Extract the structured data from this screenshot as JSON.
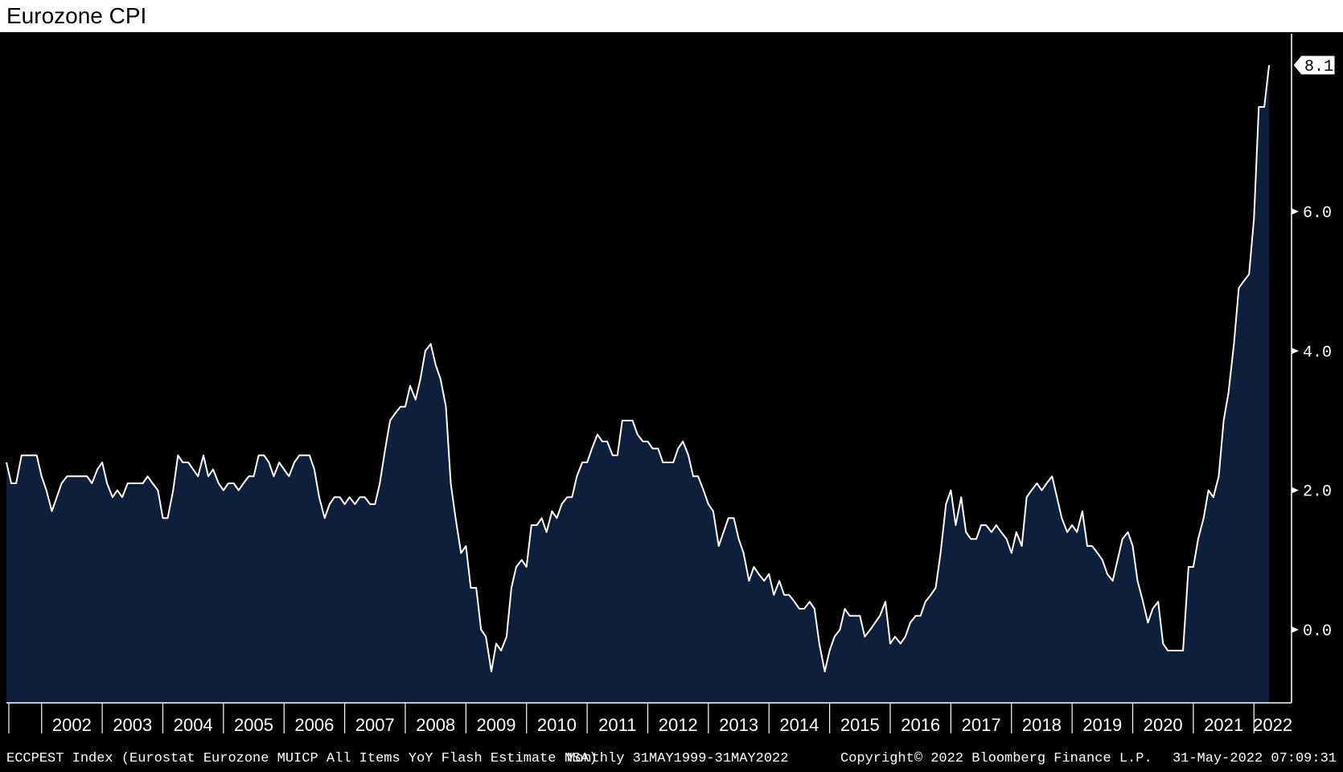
{
  "title": "Eurozone CPI",
  "footer": {
    "ticker": "ECCPEST Index (Eurostat Eurozone MUICP All Items YoY Flash Estimate NSA)",
    "frequency": "Monthly 31MAY1999-31MAY2022",
    "copyright": "Copyright© 2022 Bloomberg Finance L.P.",
    "timestamp": "31-May-2022 07:09:31"
  },
  "colors": {
    "background": "#000000",
    "area_fill": "#0d1f3a",
    "line": "#ffffff",
    "frame": "#ffffff"
  },
  "chart_data": {
    "type": "area",
    "title": "Eurozone CPI",
    "xlabel": "",
    "ylabel": "",
    "ylim": [
      -1.05,
      8.55
    ],
    "xlim": [
      2001.42,
      2022.62
    ],
    "y_ticks": [
      0.0,
      2.0,
      4.0,
      6.0
    ],
    "y_tick_labels": [
      "0.0",
      "2.0",
      "4.0",
      "6.0"
    ],
    "x_year_labels": [
      "2002",
      "2003",
      "2004",
      "2005",
      "2006",
      "2007",
      "2008",
      "2009",
      "2010",
      "2011",
      "2012",
      "2013",
      "2014",
      "2015",
      "2016",
      "2017",
      "2018",
      "2019",
      "2020",
      "2021",
      "2022"
    ],
    "last_value": 8.1,
    "last_value_label": "8.1",
    "grid": false,
    "legend": "none",
    "series": [
      {
        "points": [
          [
            2001.42,
            2.4
          ],
          [
            2001.5,
            2.1
          ],
          [
            2001.58,
            2.1
          ],
          [
            2001.67,
            2.5
          ],
          [
            2001.75,
            2.5
          ],
          [
            2001.83,
            2.5
          ],
          [
            2001.92,
            2.5
          ],
          [
            2002.0,
            2.2
          ],
          [
            2002.08,
            2.0
          ],
          [
            2002.17,
            1.7
          ],
          [
            2002.25,
            1.9
          ],
          [
            2002.33,
            2.1
          ],
          [
            2002.42,
            2.2
          ],
          [
            2002.5,
            2.2
          ],
          [
            2002.58,
            2.2
          ],
          [
            2002.67,
            2.2
          ],
          [
            2002.75,
            2.2
          ],
          [
            2002.83,
            2.1
          ],
          [
            2002.92,
            2.3
          ],
          [
            2003.0,
            2.4
          ],
          [
            2003.08,
            2.1
          ],
          [
            2003.17,
            1.9
          ],
          [
            2003.25,
            2.0
          ],
          [
            2003.33,
            1.9
          ],
          [
            2003.42,
            2.1
          ],
          [
            2003.5,
            2.1
          ],
          [
            2003.58,
            2.1
          ],
          [
            2003.67,
            2.1
          ],
          [
            2003.75,
            2.2
          ],
          [
            2003.83,
            2.1
          ],
          [
            2003.92,
            2.0
          ],
          [
            2004.0,
            1.6
          ],
          [
            2004.08,
            1.6
          ],
          [
            2004.17,
            2.0
          ],
          [
            2004.25,
            2.5
          ],
          [
            2004.33,
            2.4
          ],
          [
            2004.42,
            2.4
          ],
          [
            2004.5,
            2.3
          ],
          [
            2004.58,
            2.2
          ],
          [
            2004.67,
            2.5
          ],
          [
            2004.75,
            2.2
          ],
          [
            2004.83,
            2.3
          ],
          [
            2004.92,
            2.1
          ],
          [
            2005.0,
            2.0
          ],
          [
            2005.08,
            2.1
          ],
          [
            2005.17,
            2.1
          ],
          [
            2005.25,
            2.0
          ],
          [
            2005.33,
            2.1
          ],
          [
            2005.42,
            2.2
          ],
          [
            2005.5,
            2.2
          ],
          [
            2005.58,
            2.5
          ],
          [
            2005.67,
            2.5
          ],
          [
            2005.75,
            2.4
          ],
          [
            2005.83,
            2.2
          ],
          [
            2005.92,
            2.4
          ],
          [
            2006.0,
            2.3
          ],
          [
            2006.08,
            2.2
          ],
          [
            2006.17,
            2.4
          ],
          [
            2006.25,
            2.5
          ],
          [
            2006.33,
            2.5
          ],
          [
            2006.42,
            2.5
          ],
          [
            2006.5,
            2.3
          ],
          [
            2006.58,
            1.9
          ],
          [
            2006.67,
            1.6
          ],
          [
            2006.75,
            1.8
          ],
          [
            2006.83,
            1.9
          ],
          [
            2006.92,
            1.9
          ],
          [
            2007.0,
            1.8
          ],
          [
            2007.08,
            1.9
          ],
          [
            2007.17,
            1.8
          ],
          [
            2007.25,
            1.9
          ],
          [
            2007.33,
            1.9
          ],
          [
            2007.42,
            1.8
          ],
          [
            2007.5,
            1.8
          ],
          [
            2007.58,
            2.1
          ],
          [
            2007.67,
            2.6
          ],
          [
            2007.75,
            3.0
          ],
          [
            2007.83,
            3.1
          ],
          [
            2007.92,
            3.2
          ],
          [
            2008.0,
            3.2
          ],
          [
            2008.08,
            3.5
          ],
          [
            2008.17,
            3.3
          ],
          [
            2008.25,
            3.6
          ],
          [
            2008.33,
            4.0
          ],
          [
            2008.42,
            4.1
          ],
          [
            2008.5,
            3.8
          ],
          [
            2008.58,
            3.6
          ],
          [
            2008.67,
            3.2
          ],
          [
            2008.75,
            2.1
          ],
          [
            2008.83,
            1.6
          ],
          [
            2008.92,
            1.1
          ],
          [
            2009.0,
            1.2
          ],
          [
            2009.08,
            0.6
          ],
          [
            2009.17,
            0.6
          ],
          [
            2009.25,
            0.0
          ],
          [
            2009.33,
            -0.1
          ],
          [
            2009.42,
            -0.6
          ],
          [
            2009.5,
            -0.2
          ],
          [
            2009.58,
            -0.3
          ],
          [
            2009.67,
            -0.1
          ],
          [
            2009.75,
            0.6
          ],
          [
            2009.83,
            0.9
          ],
          [
            2009.92,
            1.0
          ],
          [
            2010.0,
            0.9
          ],
          [
            2010.08,
            1.5
          ],
          [
            2010.17,
            1.5
          ],
          [
            2010.25,
            1.6
          ],
          [
            2010.33,
            1.4
          ],
          [
            2010.42,
            1.7
          ],
          [
            2010.5,
            1.6
          ],
          [
            2010.58,
            1.8
          ],
          [
            2010.67,
            1.9
          ],
          [
            2010.75,
            1.9
          ],
          [
            2010.83,
            2.2
          ],
          [
            2010.92,
            2.4
          ],
          [
            2011.0,
            2.4
          ],
          [
            2011.08,
            2.6
          ],
          [
            2011.17,
            2.8
          ],
          [
            2011.25,
            2.7
          ],
          [
            2011.33,
            2.7
          ],
          [
            2011.42,
            2.5
          ],
          [
            2011.5,
            2.5
          ],
          [
            2011.58,
            3.0
          ],
          [
            2011.67,
            3.0
          ],
          [
            2011.75,
            3.0
          ],
          [
            2011.83,
            2.8
          ],
          [
            2011.92,
            2.7
          ],
          [
            2012.0,
            2.7
          ],
          [
            2012.08,
            2.6
          ],
          [
            2012.17,
            2.6
          ],
          [
            2012.25,
            2.4
          ],
          [
            2012.33,
            2.4
          ],
          [
            2012.42,
            2.4
          ],
          [
            2012.5,
            2.6
          ],
          [
            2012.58,
            2.7
          ],
          [
            2012.67,
            2.5
          ],
          [
            2012.75,
            2.2
          ],
          [
            2012.83,
            2.2
          ],
          [
            2012.92,
            2.0
          ],
          [
            2013.0,
            1.8
          ],
          [
            2013.08,
            1.7
          ],
          [
            2013.17,
            1.2
          ],
          [
            2013.25,
            1.4
          ],
          [
            2013.33,
            1.6
          ],
          [
            2013.42,
            1.6
          ],
          [
            2013.5,
            1.3
          ],
          [
            2013.58,
            1.1
          ],
          [
            2013.67,
            0.7
          ],
          [
            2013.75,
            0.9
          ],
          [
            2013.83,
            0.8
          ],
          [
            2013.92,
            0.7
          ],
          [
            2014.0,
            0.8
          ],
          [
            2014.08,
            0.5
          ],
          [
            2014.17,
            0.7
          ],
          [
            2014.25,
            0.5
          ],
          [
            2014.33,
            0.5
          ],
          [
            2014.42,
            0.4
          ],
          [
            2014.5,
            0.3
          ],
          [
            2014.58,
            0.3
          ],
          [
            2014.67,
            0.4
          ],
          [
            2014.75,
            0.3
          ],
          [
            2014.83,
            -0.2
          ],
          [
            2014.92,
            -0.6
          ],
          [
            2015.0,
            -0.3
          ],
          [
            2015.08,
            -0.1
          ],
          [
            2015.17,
            0.0
          ],
          [
            2015.25,
            0.3
          ],
          [
            2015.33,
            0.2
          ],
          [
            2015.42,
            0.2
          ],
          [
            2015.5,
            0.2
          ],
          [
            2015.58,
            -0.1
          ],
          [
            2015.67,
            0.0
          ],
          [
            2015.75,
            0.1
          ],
          [
            2015.83,
            0.2
          ],
          [
            2015.92,
            0.4
          ],
          [
            2016.0,
            -0.2
          ],
          [
            2016.08,
            -0.1
          ],
          [
            2016.17,
            -0.2
          ],
          [
            2016.25,
            -0.1
          ],
          [
            2016.33,
            0.1
          ],
          [
            2016.42,
            0.2
          ],
          [
            2016.5,
            0.2
          ],
          [
            2016.58,
            0.4
          ],
          [
            2016.67,
            0.5
          ],
          [
            2016.75,
            0.6
          ],
          [
            2016.83,
            1.1
          ],
          [
            2016.92,
            1.8
          ],
          [
            2017.0,
            2.0
          ],
          [
            2017.08,
            1.5
          ],
          [
            2017.17,
            1.9
          ],
          [
            2017.25,
            1.4
          ],
          [
            2017.33,
            1.3
          ],
          [
            2017.42,
            1.3
          ],
          [
            2017.5,
            1.5
          ],
          [
            2017.58,
            1.5
          ],
          [
            2017.67,
            1.4
          ],
          [
            2017.75,
            1.5
          ],
          [
            2017.83,
            1.4
          ],
          [
            2017.92,
            1.3
          ],
          [
            2018.0,
            1.1
          ],
          [
            2018.08,
            1.4
          ],
          [
            2018.17,
            1.2
          ],
          [
            2018.25,
            1.9
          ],
          [
            2018.33,
            2.0
          ],
          [
            2018.42,
            2.1
          ],
          [
            2018.5,
            2.0
          ],
          [
            2018.58,
            2.1
          ],
          [
            2018.67,
            2.2
          ],
          [
            2018.75,
            1.9
          ],
          [
            2018.83,
            1.6
          ],
          [
            2018.92,
            1.4
          ],
          [
            2019.0,
            1.5
          ],
          [
            2019.08,
            1.4
          ],
          [
            2019.17,
            1.7
          ],
          [
            2019.25,
            1.2
          ],
          [
            2019.33,
            1.2
          ],
          [
            2019.42,
            1.1
          ],
          [
            2019.5,
            1.0
          ],
          [
            2019.58,
            0.8
          ],
          [
            2019.67,
            0.7
          ],
          [
            2019.75,
            1.0
          ],
          [
            2019.83,
            1.3
          ],
          [
            2019.92,
            1.4
          ],
          [
            2020.0,
            1.2
          ],
          [
            2020.08,
            0.7
          ],
          [
            2020.17,
            0.4
          ],
          [
            2020.25,
            0.1
          ],
          [
            2020.33,
            0.3
          ],
          [
            2020.42,
            0.4
          ],
          [
            2020.5,
            -0.2
          ],
          [
            2020.58,
            -0.3
          ],
          [
            2020.67,
            -0.3
          ],
          [
            2020.75,
            -0.3
          ],
          [
            2020.83,
            -0.3
          ],
          [
            2020.92,
            0.9
          ],
          [
            2021.0,
            0.9
          ],
          [
            2021.08,
            1.3
          ],
          [
            2021.17,
            1.6
          ],
          [
            2021.25,
            2.0
          ],
          [
            2021.33,
            1.9
          ],
          [
            2021.42,
            2.2
          ],
          [
            2021.5,
            3.0
          ],
          [
            2021.58,
            3.4
          ],
          [
            2021.67,
            4.1
          ],
          [
            2021.75,
            4.9
          ],
          [
            2021.83,
            5.0
          ],
          [
            2021.92,
            5.1
          ],
          [
            2022.0,
            5.9
          ],
          [
            2022.08,
            7.5
          ],
          [
            2022.17,
            7.5
          ],
          [
            2022.25,
            8.1
          ]
        ]
      }
    ]
  }
}
